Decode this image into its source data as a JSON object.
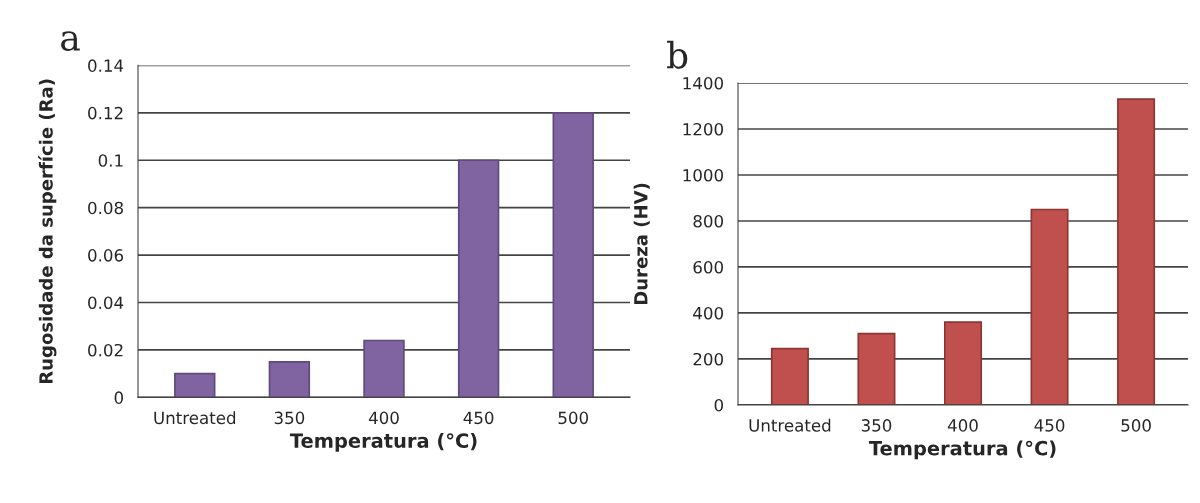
{
  "chart_data": [
    {
      "type": "bar",
      "title": "a",
      "xlabel": "Temperatura (°C)",
      "ylabel": "Rugosidade da superfície (Ra)",
      "categories": [
        "Untreated",
        "350",
        "400",
        "450",
        "500"
      ],
      "values": [
        0.01,
        0.015,
        0.024,
        0.1,
        0.12
      ],
      "color": "#8064a2",
      "ylim": [
        0,
        0.14
      ],
      "yticks": [
        {
          "value": 0,
          "label": "0"
        },
        0.02,
        0.04,
        0.06,
        0.08,
        {
          "value": 0.1,
          "label": "0.1"
        },
        0.12,
        0.14
      ],
      "grid": "y"
    },
    {
      "type": "bar",
      "title": "b",
      "xlabel": "Temperatura (°C)",
      "ylabel": "Dureza (HV)",
      "categories": [
        "Untreated",
        "350",
        "400",
        "450",
        "500"
      ],
      "values": [
        245,
        310,
        360,
        850,
        1330
      ],
      "color": "#c0504d",
      "ylim": [
        0,
        1400
      ],
      "yticks": [
        0,
        200,
        400,
        600,
        800,
        1000,
        1200,
        1400
      ],
      "grid": "y"
    }
  ]
}
